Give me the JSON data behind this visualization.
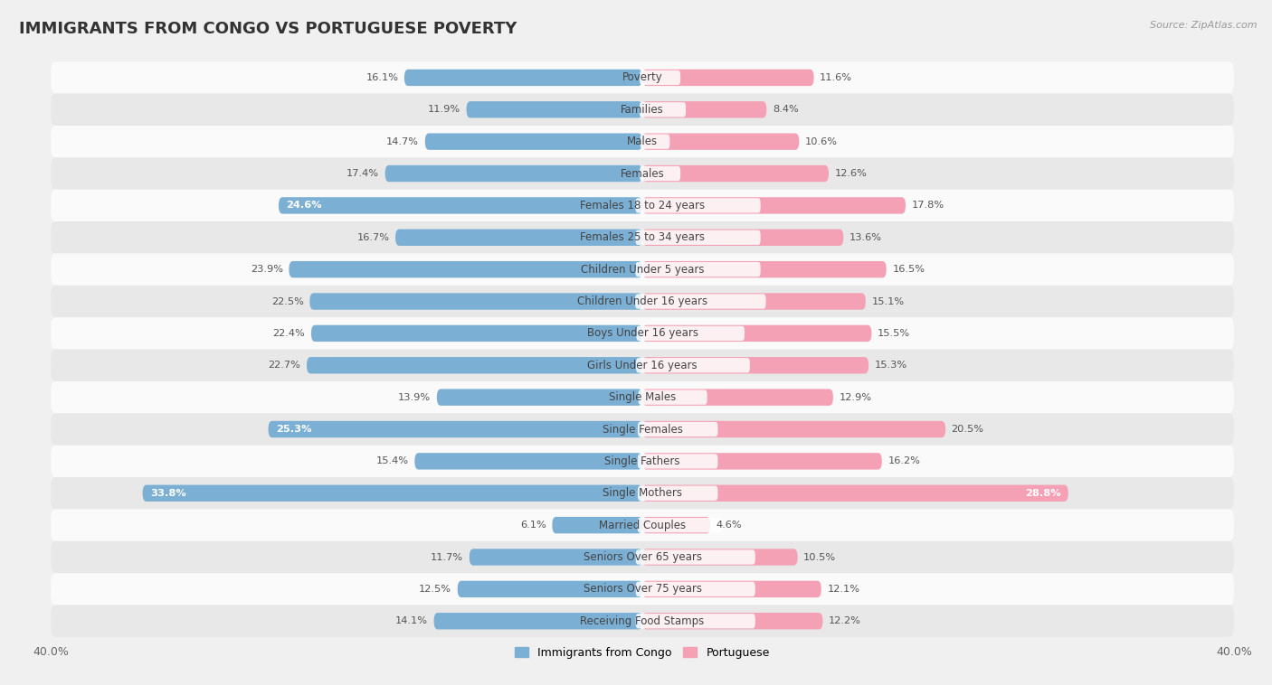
{
  "title": "IMMIGRANTS FROM CONGO VS PORTUGUESE POVERTY",
  "source": "Source: ZipAtlas.com",
  "categories": [
    "Poverty",
    "Families",
    "Males",
    "Females",
    "Females 18 to 24 years",
    "Females 25 to 34 years",
    "Children Under 5 years",
    "Children Under 16 years",
    "Boys Under 16 years",
    "Girls Under 16 years",
    "Single Males",
    "Single Females",
    "Single Fathers",
    "Single Mothers",
    "Married Couples",
    "Seniors Over 65 years",
    "Seniors Over 75 years",
    "Receiving Food Stamps"
  ],
  "congo_values": [
    16.1,
    11.9,
    14.7,
    17.4,
    24.6,
    16.7,
    23.9,
    22.5,
    22.4,
    22.7,
    13.9,
    25.3,
    15.4,
    33.8,
    6.1,
    11.7,
    12.5,
    14.1
  ],
  "portuguese_values": [
    11.6,
    8.4,
    10.6,
    12.6,
    17.8,
    13.6,
    16.5,
    15.1,
    15.5,
    15.3,
    12.9,
    20.5,
    16.2,
    28.8,
    4.6,
    10.5,
    12.1,
    12.2
  ],
  "congo_color": "#7bafd4",
  "portuguese_color": "#f4a0b5",
  "congo_label_inside": [
    4,
    11,
    13
  ],
  "portuguese_label_inside": [
    13
  ],
  "background_color": "#f0f0f0",
  "row_bg_light": "#fafafa",
  "row_bg_dark": "#e8e8e8",
  "axis_limit": 40.0,
  "bar_height": 0.52,
  "legend_congo": "Immigrants from Congo",
  "legend_portuguese": "Portuguese",
  "title_fontsize": 13,
  "label_fontsize": 8.5,
  "value_fontsize": 8.2
}
